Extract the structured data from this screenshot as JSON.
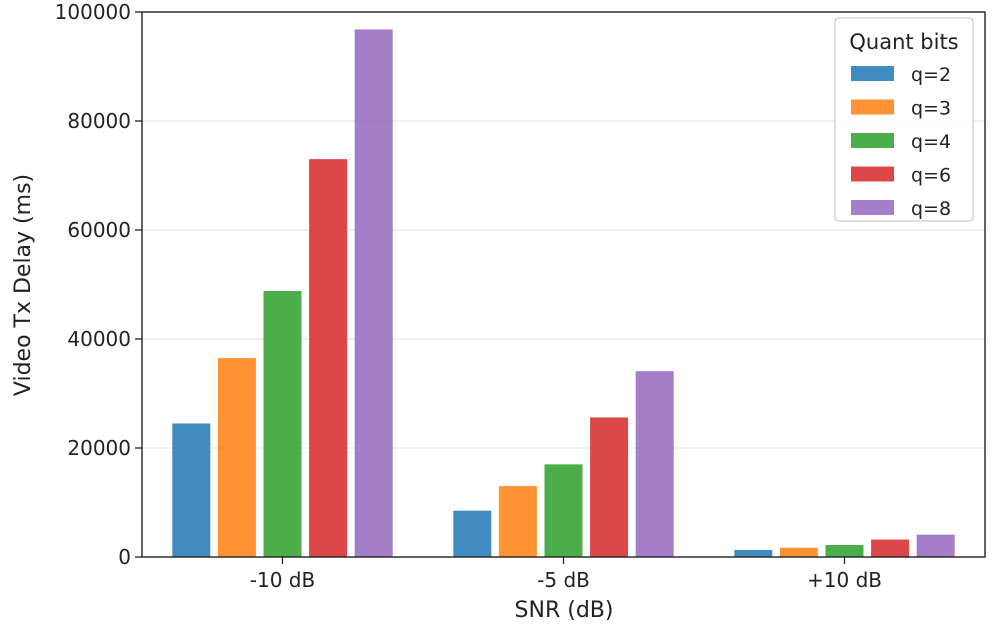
{
  "chart_data": {
    "type": "bar",
    "categories": [
      "-10 dB",
      "-5 dB",
      "+10 dB"
    ],
    "series": [
      {
        "name": "q=2",
        "color": "#1f77b4",
        "values": [
          24500,
          8500,
          1300
        ]
      },
      {
        "name": "q=3",
        "color": "#ff7f0e",
        "values": [
          36500,
          13000,
          1700
        ]
      },
      {
        "name": "q=4",
        "color": "#2ca02c",
        "values": [
          48800,
          17000,
          2200
        ]
      },
      {
        "name": "q=6",
        "color": "#d62728",
        "values": [
          73000,
          25600,
          3200
        ]
      },
      {
        "name": "q=8",
        "color": "#9467bd",
        "values": [
          96800,
          34100,
          4100
        ]
      }
    ],
    "title": "",
    "xlabel": "SNR (dB)",
    "ylabel": "Video Tx Delay (ms)",
    "ylim": [
      0,
      100000
    ],
    "yticks": [
      "0",
      "20000",
      "40000",
      "60000",
      "80000",
      "100000"
    ],
    "grid": "horizontal",
    "legend_title": "Quant bits",
    "legend_position": "top-right",
    "bar_opacity": 0.85
  }
}
